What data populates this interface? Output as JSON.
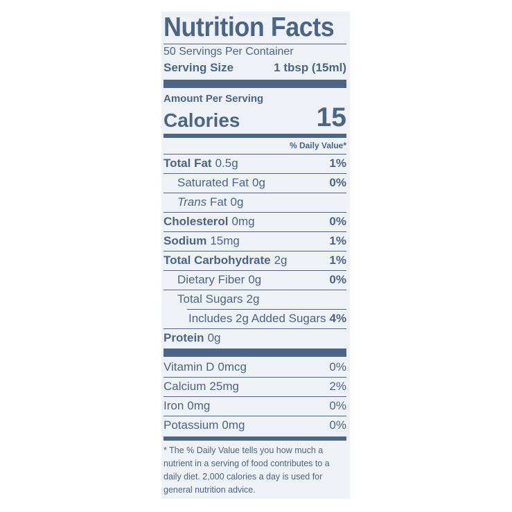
{
  "title": "Nutrition Facts",
  "servings_per_container": "50 Servings Per Container",
  "serving_size_label": "Serving Size",
  "serving_size_value": "1 tbsp (15ml)",
  "amount_per_serving": "Amount Per Serving",
  "calories_label": "Calories",
  "calories_value": "15",
  "daily_value_header": "% Daily Value*",
  "nutrients": [
    {
      "name": "Total Fat",
      "amount": "0.5g",
      "dv": "1%"
    },
    {
      "name": "Saturated Fat",
      "amount": "0g",
      "dv": "0%"
    },
    {
      "name_italic": "Trans",
      "name": "Fat",
      "amount": "0g",
      "dv": ""
    },
    {
      "name": "Cholesterol",
      "amount": "0mg",
      "dv": "0%"
    },
    {
      "name": "Sodium",
      "amount": "15mg",
      "dv": "1%"
    },
    {
      "name": "Total Carbohydrate",
      "amount": "2g",
      "dv": "1%"
    },
    {
      "name": "Dietary Fiber",
      "amount": "0g",
      "dv": "0%"
    },
    {
      "name": "Total Sugars",
      "amount": "2g",
      "dv": ""
    },
    {
      "name": "Includes 2g Added Sugars",
      "amount": "",
      "dv": "4%"
    },
    {
      "name": "Protein",
      "amount": "0g",
      "dv": ""
    }
  ],
  "vitamins": [
    {
      "name": "Vitamin D",
      "amount": "0mcg",
      "dv": "0%"
    },
    {
      "name": "Calcium",
      "amount": "25mg",
      "dv": "2%"
    },
    {
      "name": "Iron",
      "amount": "0mg",
      "dv": "0%"
    },
    {
      "name": "Potassium",
      "amount": "0mg",
      "dv": "0%"
    }
  ],
  "footnote": [
    "* The % Daily Value tells you how much a",
    "nutrient in a serving of food contributes to a",
    "daily diet. 2,000 calories a day is used for",
    "general nutrition advice."
  ]
}
